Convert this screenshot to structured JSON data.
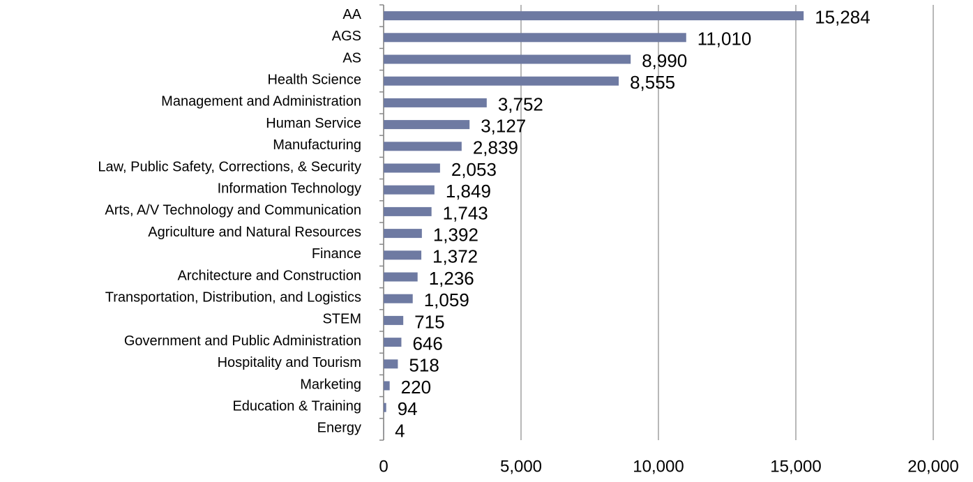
{
  "chart_data": {
    "type": "barh",
    "categories": [
      "AA",
      "AGS",
      "AS",
      "Health Science",
      "Management and Administration",
      "Human Service",
      "Manufacturing",
      "Law, Public Safety, Corrections, & Security",
      "Information Technology",
      "Arts, A/V Technology and Communication",
      "Agriculture and Natural Resources",
      "Finance",
      "Architecture and Construction",
      "Transportation, Distribution, and Logistics",
      "STEM",
      "Government and Public Administration",
      "Hospitality and Tourism",
      "Marketing",
      "Education & Training",
      "Energy"
    ],
    "values": [
      15284,
      11010,
      8990,
      8555,
      3752,
      3127,
      2839,
      2053,
      1849,
      1743,
      1392,
      1372,
      1236,
      1059,
      715,
      646,
      518,
      220,
      94,
      4
    ],
    "value_labels": [
      "15,284",
      "11,010",
      "8,990",
      "8,555",
      "3,752",
      "3,127",
      "2,839",
      "2,053",
      "1,849",
      "1,743",
      "1,392",
      "1,372",
      "1,236",
      "1,059",
      "715",
      "646",
      "518",
      "220",
      "94",
      "4"
    ],
    "color": "#6e7aa2",
    "xlim": [
      0,
      20000
    ],
    "xticks": [
      0,
      {
        "value": 5000,
        "label": "5,000"
      },
      {
        "value": 10000,
        "label": "10,000"
      },
      {
        "value": 15000,
        "label": "15,000"
      },
      {
        "value": 20000,
        "label": "20,000"
      }
    ],
    "grid": true
  }
}
